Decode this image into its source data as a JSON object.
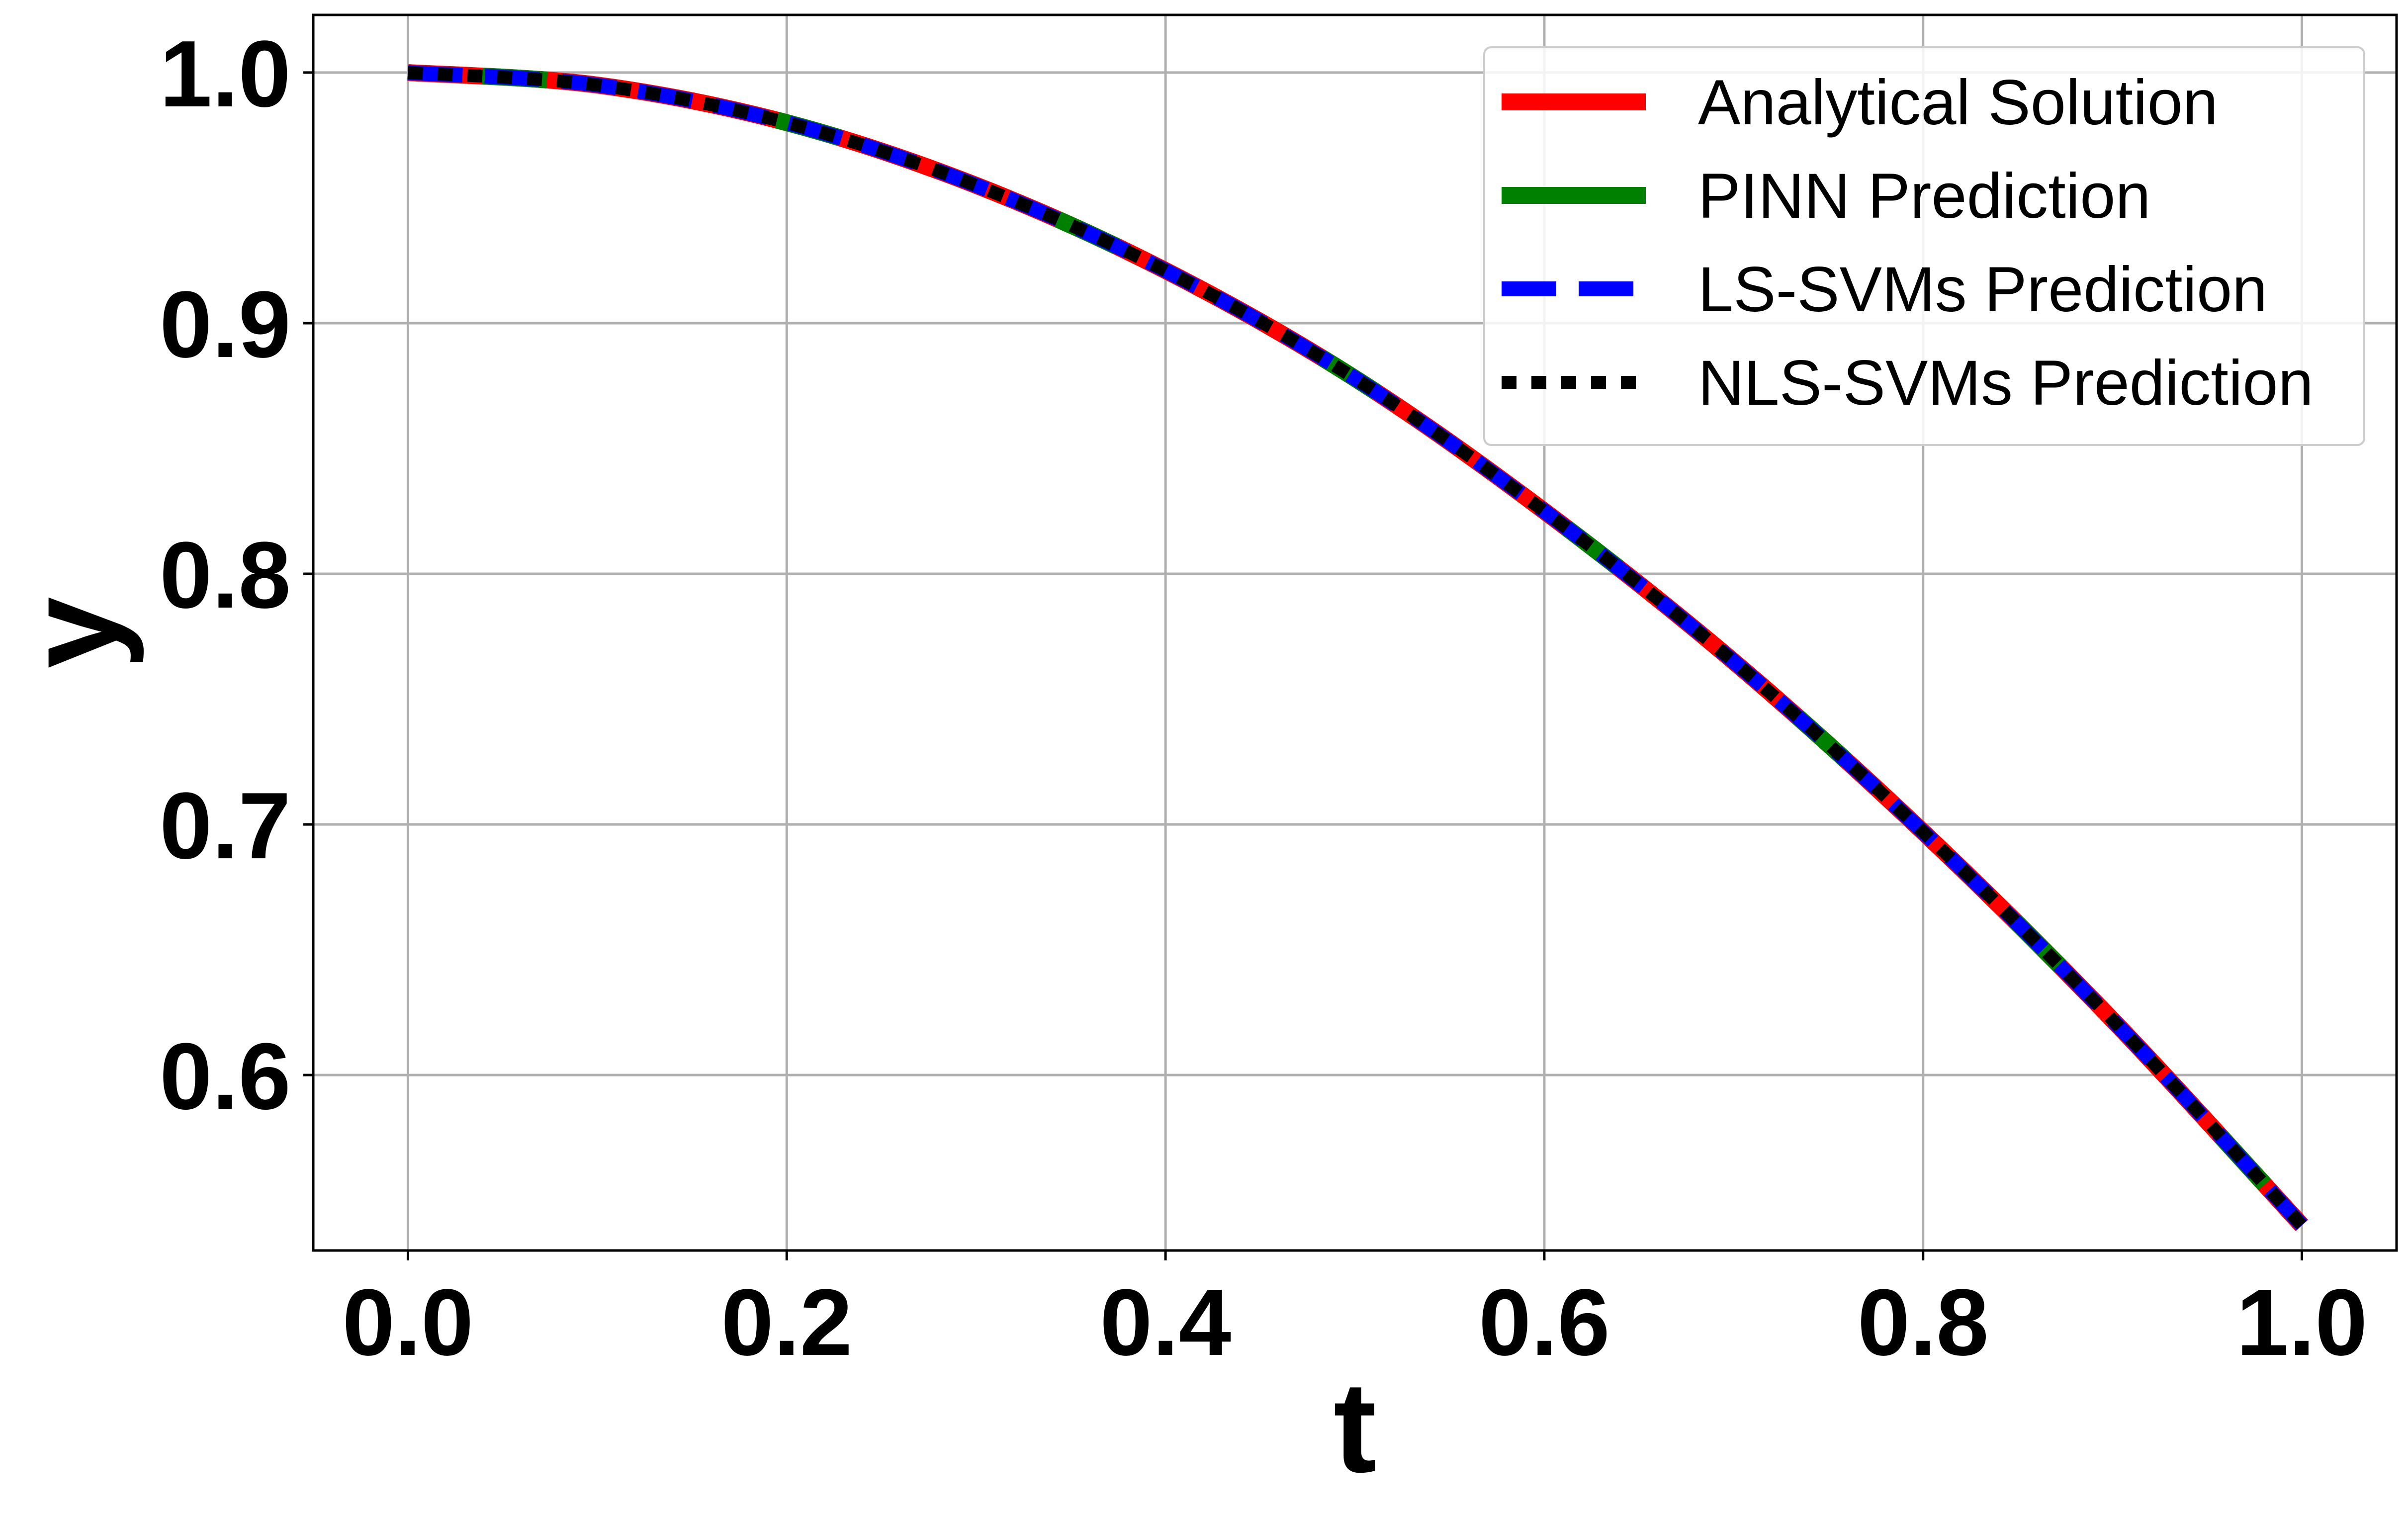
{
  "chart_data": {
    "type": "line",
    "xlabel": "t",
    "ylabel": "y",
    "xlim": [
      -0.05,
      1.05
    ],
    "ylim": [
      0.53,
      1.023
    ],
    "xticks": [
      0.0,
      0.2,
      0.4,
      0.6,
      0.8,
      1.0
    ],
    "yticks": [
      0.6,
      0.7,
      0.8,
      0.9,
      1.0
    ],
    "xtick_labels": [
      "0.0",
      "0.2",
      "0.4",
      "0.6",
      "0.8",
      "1.0"
    ],
    "ytick_labels": [
      "0.6",
      "0.7",
      "0.8",
      "0.9",
      "1.0"
    ],
    "grid": true,
    "legend_position": "top-right",
    "x": [
      0.0,
      0.1,
      0.2,
      0.3,
      0.4,
      0.5,
      0.6,
      0.7,
      0.8,
      0.9,
      1.0
    ],
    "series": [
      {
        "name": "Analytical Solution",
        "color": "#ff0000",
        "style": "solid",
        "values": [
          1.0,
          0.995,
          0.98,
          0.955,
          0.921,
          0.878,
          0.825,
          0.765,
          0.697,
          0.622,
          0.54
        ]
      },
      {
        "name": "PINN Prediction",
        "color": "#008000",
        "style": "dashed-long",
        "values": [
          1.0,
          0.995,
          0.98,
          0.955,
          0.921,
          0.878,
          0.825,
          0.765,
          0.697,
          0.622,
          0.54
        ]
      },
      {
        "name": "LS-SVMs Prediction",
        "color": "#0000ff",
        "style": "dashed",
        "values": [
          1.0,
          0.995,
          0.98,
          0.955,
          0.921,
          0.878,
          0.825,
          0.765,
          0.697,
          0.622,
          0.54
        ]
      },
      {
        "name": "NLS-SVMs Prediction",
        "color": "#000000",
        "style": "dotted",
        "values": [
          1.0,
          0.995,
          0.98,
          0.955,
          0.921,
          0.878,
          0.825,
          0.765,
          0.697,
          0.622,
          0.54
        ]
      }
    ]
  }
}
